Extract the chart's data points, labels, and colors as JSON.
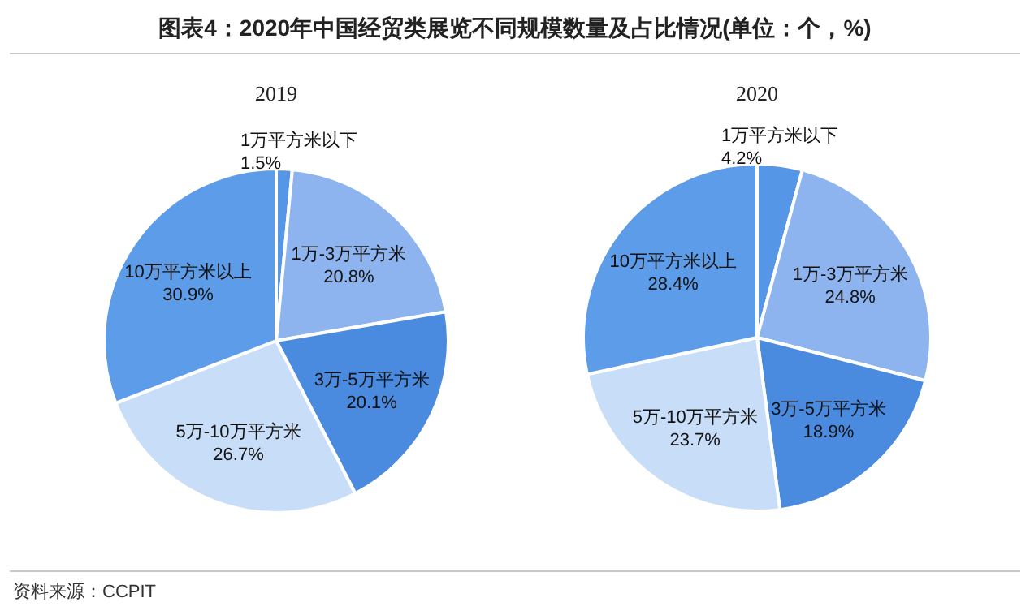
{
  "chart_data": [
    {
      "type": "pie",
      "title": "图表4：2020年中国经贸类展览不同规模数量及占比情况(单位：个，%)",
      "subtitle": "2019",
      "categories": [
        "1万平方米以下",
        "1万-3万平方米",
        "3万-5万平方米",
        "5万-10万平方米",
        "10万平方米以上"
      ],
      "values": [
        1.5,
        20.8,
        20.1,
        26.7,
        30.9
      ],
      "value_labels": [
        "1.5%",
        "20.8%",
        "20.1%",
        "26.7%",
        "30.9%"
      ],
      "colors": [
        "#5596e6",
        "#8db4ee",
        "#4a8be0",
        "#c8ddf8",
        "#5d9ce8"
      ]
    },
    {
      "type": "pie",
      "subtitle": "2020",
      "categories": [
        "1万平方米以下",
        "1万-3万平方米",
        "3万-5万平方米",
        "5万-10万平方米",
        "10万平方米以上"
      ],
      "values": [
        4.2,
        24.8,
        18.9,
        23.7,
        28.4
      ],
      "value_labels": [
        "4.2%",
        "24.8%",
        "18.9%",
        "23.7%",
        "28.4%"
      ],
      "colors": [
        "#5596e6",
        "#8db4ee",
        "#4a8be0",
        "#c8ddf8",
        "#5d9ce8"
      ],
      "annotations": [
        "资料来源：CCPIT"
      ]
    }
  ]
}
